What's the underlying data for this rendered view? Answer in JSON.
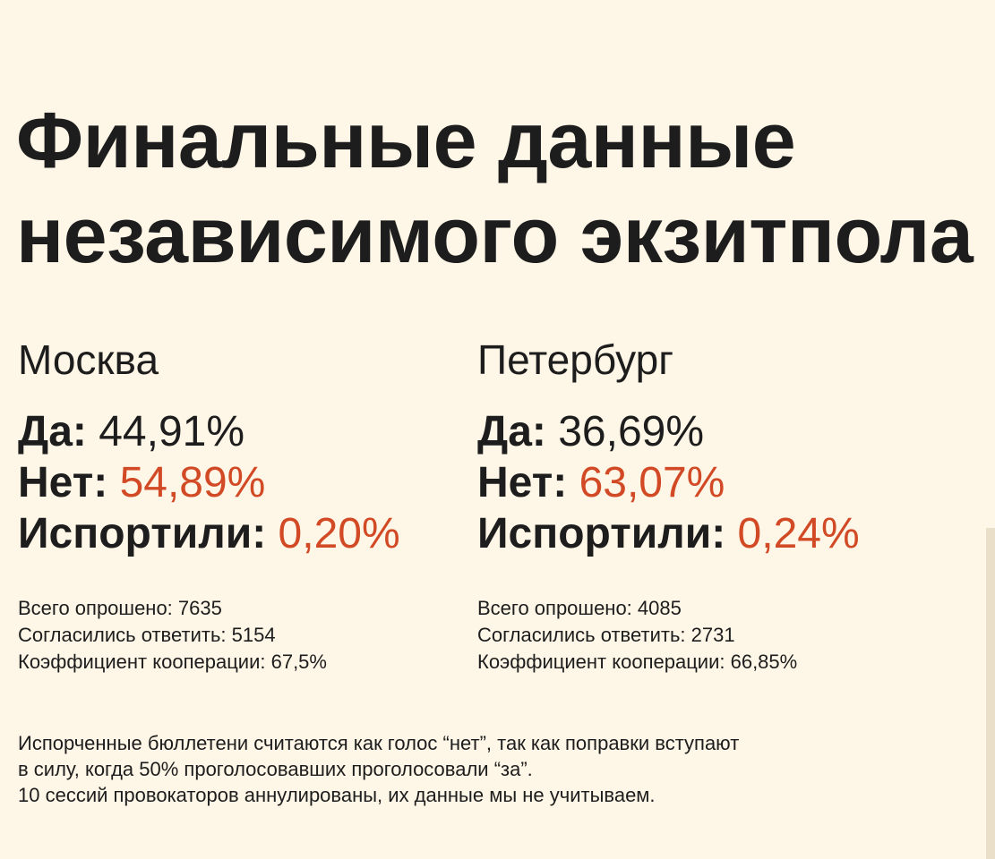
{
  "title": {
    "line1": "Финальные данные",
    "line2": "независимого экзитпола"
  },
  "regions": [
    {
      "city": "Москва",
      "yes_label": "Да:",
      "yes_value": "44,91%",
      "no_label": "Нет:",
      "no_value": "54,89%",
      "spoiled_label": "Испортили:",
      "spoiled_value": "0,20%",
      "surveyed": "Всего опрошено:  7635",
      "agreed": "Согласились ответить:  5154",
      "coop": "Коэффициент кооперации: 67,5%"
    },
    {
      "city": "Петербург",
      "yes_label": "Да:",
      "yes_value": "36,69%",
      "no_label": "Нет:",
      "no_value": "63,07%",
      "spoiled_label": "Испортили:",
      "spoiled_value": "0,24%",
      "surveyed": "Всего опрошено:  4085",
      "agreed": "Согласились ответить:  2731",
      "coop": "Коэффициент кооперации: 66,85%"
    }
  ],
  "note": {
    "line1": "Испорченные бюллетени считаются как голос “нет”, так как поправки вступают",
    "line2": "в силу, когда 50% проголосовавших проголосовали “за”.",
    "line3": "10 сессий провокаторов аннулированы, их данные мы не учитываем."
  },
  "colors": {
    "background": "#fef6e6",
    "text": "#1d1d1d",
    "accent": "#d24a25"
  }
}
